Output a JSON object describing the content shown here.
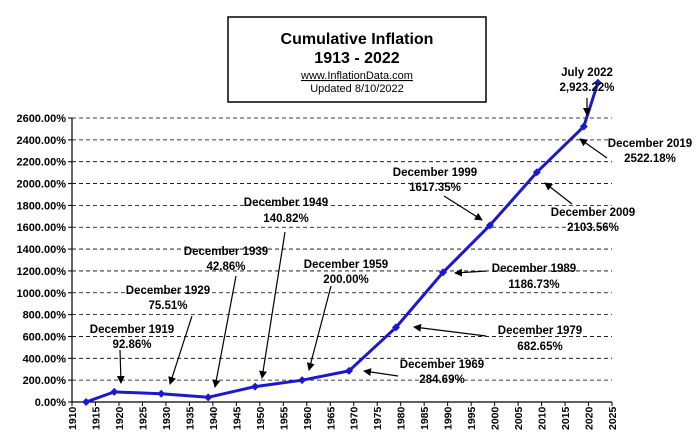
{
  "title_box": {
    "title_line1": "Cumulative Inflation",
    "title_line2": "1913 - 2022",
    "url": "www.InflationData.com",
    "updated": "Updated   8/10/2022"
  },
  "colors": {
    "line": "#1a1acc",
    "marker": "#1a1acc",
    "grid": "#000000",
    "background": "#ffffff"
  },
  "chart_data": {
    "type": "line",
    "title": "Cumulative Inflation 1913 - 2022",
    "xlabel": "",
    "ylabel": "",
    "xlim": [
      1910,
      2025
    ],
    "ylim": [
      0,
      2600
    ],
    "x_ticks": [
      1910,
      1915,
      1920,
      1925,
      1930,
      1935,
      1940,
      1945,
      1950,
      1955,
      1960,
      1965,
      1970,
      1975,
      1980,
      1985,
      1990,
      1995,
      2000,
      2005,
      2010,
      2015,
      2020,
      2025
    ],
    "y_ticks": [
      0,
      200,
      400,
      600,
      800,
      1000,
      1200,
      1400,
      1600,
      1800,
      2000,
      2200,
      2400,
      2600
    ],
    "y_tick_labels": [
      "0.00%",
      "200.00%",
      "400.00%",
      "600.00%",
      "800.00%",
      "1000.00%",
      "1200.00%",
      "1400.00%",
      "1600.00%",
      "1800.00%",
      "2000.00%",
      "2200.00%",
      "2400.00%",
      "2600.00%"
    ],
    "grid": "horizontal dashed",
    "series": [
      {
        "x": [
          1913,
          1919,
          1929,
          1939,
          1949,
          1959,
          1969,
          1979,
          1989,
          1999,
          2009,
          2019,
          2022
        ],
        "values": [
          0,
          92.86,
          75.51,
          42.86,
          140.82,
          200.0,
          284.69,
          682.65,
          1186.73,
          1617.35,
          2103.56,
          2522.18,
          2923.22
        ]
      }
    ],
    "annotations": [
      {
        "line1": "December 1919",
        "line2": "92.86%"
      },
      {
        "line1": "December 1929",
        "line2": "75.51%"
      },
      {
        "line1": "December 1939",
        "line2": "42.86%"
      },
      {
        "line1": "December 1949",
        "line2": "140.82%"
      },
      {
        "line1": "December 1959",
        "line2": "200.00%"
      },
      {
        "line1": "December 1969",
        "line2": "284.69%"
      },
      {
        "line1": "December 1979",
        "line2": "682.65%"
      },
      {
        "line1": "December 1989",
        "line2": "1186.73%"
      },
      {
        "line1": "December 1999",
        "line2": "1617.35%"
      },
      {
        "line1": "December 2009",
        "line2": "2103.56%"
      },
      {
        "line1": "December 2019",
        "line2": "2522.18%"
      },
      {
        "line1": "July  2022",
        "line2": "2,923.22%"
      }
    ]
  }
}
